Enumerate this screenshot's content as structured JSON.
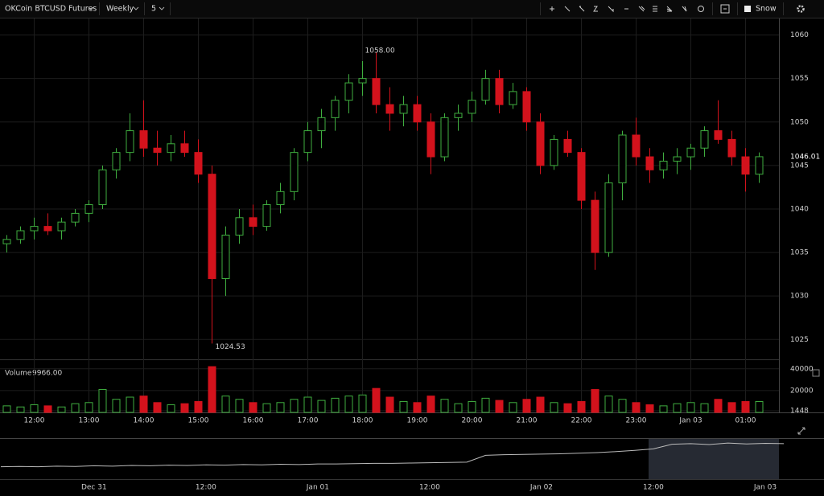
{
  "toolbar": {
    "symbol": "OKCoin BTCUSD Futures",
    "range": "Weekly",
    "interval": "5",
    "theme": "Snow"
  },
  "chart_data": [
    {
      "type": "candlestick",
      "categories": [
        null,
        null,
        "12:00",
        null,
        null,
        null,
        "13:00",
        null,
        null,
        null,
        "14:00",
        null,
        null,
        null,
        "15:00",
        null,
        null,
        null,
        "16:00",
        null,
        null,
        null,
        "17:00",
        null,
        null,
        null,
        "18:00",
        null,
        null,
        null,
        "19:00",
        null,
        null,
        null,
        "20:00",
        null,
        null,
        null,
        "21:00",
        null,
        null,
        null,
        "22:00",
        null,
        null,
        null,
        "23:00",
        null,
        null,
        null,
        "Jan 03",
        null,
        null,
        null,
        "01:00",
        null
      ],
      "open": [
        1036,
        1036.5,
        1037.5,
        1038,
        1037.5,
        1038.5,
        1039.5,
        1040.5,
        1044.5,
        1046.5,
        1049,
        1047,
        1046.5,
        1047.5,
        1046.5,
        1044,
        1032,
        1037,
        1039,
        1038,
        1040.5,
        1042,
        1046.5,
        1049,
        1050.5,
        1052.5,
        1054.5,
        1055,
        1052,
        1051,
        1052,
        1050,
        1046,
        1050.5,
        1051,
        1052.5,
        1055,
        1052,
        1053.5,
        1050,
        1045,
        1048,
        1046.5,
        1041,
        1035,
        1043,
        1048.5,
        1046,
        1044.5,
        1045.5,
        1046,
        1047,
        1049,
        1048,
        1046,
        1044
      ],
      "high": [
        1037,
        1038,
        1039,
        1039.5,
        1039,
        1040,
        1041,
        1045,
        1047,
        1051,
        1052.5,
        1049,
        1048.5,
        1049,
        1048,
        1045,
        1038,
        1040,
        1040.5,
        1041,
        1043,
        1047,
        1050,
        1051.5,
        1053,
        1055.5,
        1057,
        1058,
        1054,
        1053,
        1053,
        1051,
        1051,
        1052,
        1053.5,
        1056,
        1056,
        1054.5,
        1054,
        1051,
        1048.5,
        1049,
        1047,
        1042,
        1044,
        1049,
        1050.5,
        1047,
        1046.5,
        1047,
        1047.5,
        1049.5,
        1052.5,
        1049,
        1047,
        1046.5
      ],
      "low": [
        1035,
        1036,
        1036.5,
        1037,
        1036.5,
        1038,
        1038.5,
        1040,
        1043.5,
        1045.5,
        1046,
        1045,
        1045.5,
        1046,
        1043,
        1024.53,
        1030,
        1036,
        1037,
        1037.5,
        1039.5,
        1041,
        1045.5,
        1047,
        1049,
        1051,
        1053,
        1051,
        1049,
        1049.5,
        1049,
        1044,
        1045.5,
        1049,
        1050,
        1052,
        1051,
        1051.5,
        1049,
        1044,
        1044.5,
        1046,
        1040,
        1033,
        1034.5,
        1041,
        1045,
        1043,
        1043.5,
        1044,
        1044.5,
        1046,
        1047.5,
        1045,
        1042,
        1043
      ],
      "close": [
        1036.5,
        1037.5,
        1038,
        1037.5,
        1038.5,
        1039.5,
        1040.5,
        1044.5,
        1046.5,
        1049,
        1047,
        1046.5,
        1047.5,
        1046.5,
        1044,
        1032,
        1037,
        1039,
        1038,
        1040.5,
        1042,
        1046.5,
        1049,
        1050.5,
        1052.5,
        1054.5,
        1055,
        1052,
        1051,
        1052,
        1050,
        1046,
        1050.5,
        1051,
        1052.5,
        1055,
        1052,
        1053.5,
        1050,
        1045,
        1048,
        1046.5,
        1041,
        1035,
        1043,
        1048.5,
        1046,
        1044.5,
        1045.5,
        1046,
        1047,
        1049,
        1048,
        1046,
        1044,
        1046.01
      ],
      "max_label": {
        "value": 1058,
        "label": "1058.00"
      },
      "ylim": [
        1022.9,
        1061.9
      ],
      "yticks": [
        1025,
        1030,
        1035,
        1040,
        1045,
        1050,
        1055,
        1060
      ],
      "up_color": "#3fae3f",
      "down_color": "#d3121c",
      "grid": true
    },
    {
      "type": "bar",
      "title": "Volume",
      "current": {
        "value": 9966,
        "label": "9966.00"
      },
      "values": [
        6000,
        5000,
        7000,
        6000,
        5000,
        8000,
        9000,
        21000,
        12000,
        14000,
        15000,
        9000,
        7000,
        8000,
        10000,
        42000,
        15000,
        12000,
        9000,
        8000,
        9000,
        12000,
        14000,
        11000,
        13000,
        15000,
        16000,
        22000,
        14000,
        10000,
        9000,
        15000,
        12000,
        8000,
        10000,
        13000,
        11000,
        9000,
        12000,
        14000,
        9000,
        8000,
        10000,
        21000,
        15000,
        12000,
        9000,
        7000,
        6000,
        8000,
        9000,
        8000,
        12000,
        9000,
        10000,
        9966
      ],
      "ylim": [
        0,
        45000
      ],
      "yticks": [
        1448,
        20000,
        40000
      ]
    },
    {
      "type": "line",
      "categories": [
        null,
        null,
        null,
        null,
        null,
        "Dec 31",
        null,
        null,
        null,
        null,
        null,
        "12:00",
        null,
        null,
        null,
        null,
        null,
        "Jan 01",
        null,
        null,
        null,
        null,
        null,
        "12:00",
        null,
        null,
        null,
        null,
        null,
        "Jan 02",
        null,
        null,
        null,
        null,
        null,
        "12:00",
        null,
        null,
        null,
        null,
        null,
        "Jan 03",
        null
      ],
      "values": [
        975,
        976,
        975,
        977,
        976,
        978,
        977,
        979,
        978,
        980,
        979,
        981,
        980,
        982,
        981,
        983,
        982,
        984,
        984,
        985,
        986,
        986,
        987,
        988,
        989,
        990,
        1012,
        1014,
        1015,
        1016,
        1017,
        1019,
        1021,
        1024,
        1028,
        1033,
        1048,
        1050,
        1047,
        1052,
        1049,
        1051,
        1050
      ],
      "ylim": [
        940,
        1060
      ],
      "color": "#bbbbbb"
    }
  ]
}
